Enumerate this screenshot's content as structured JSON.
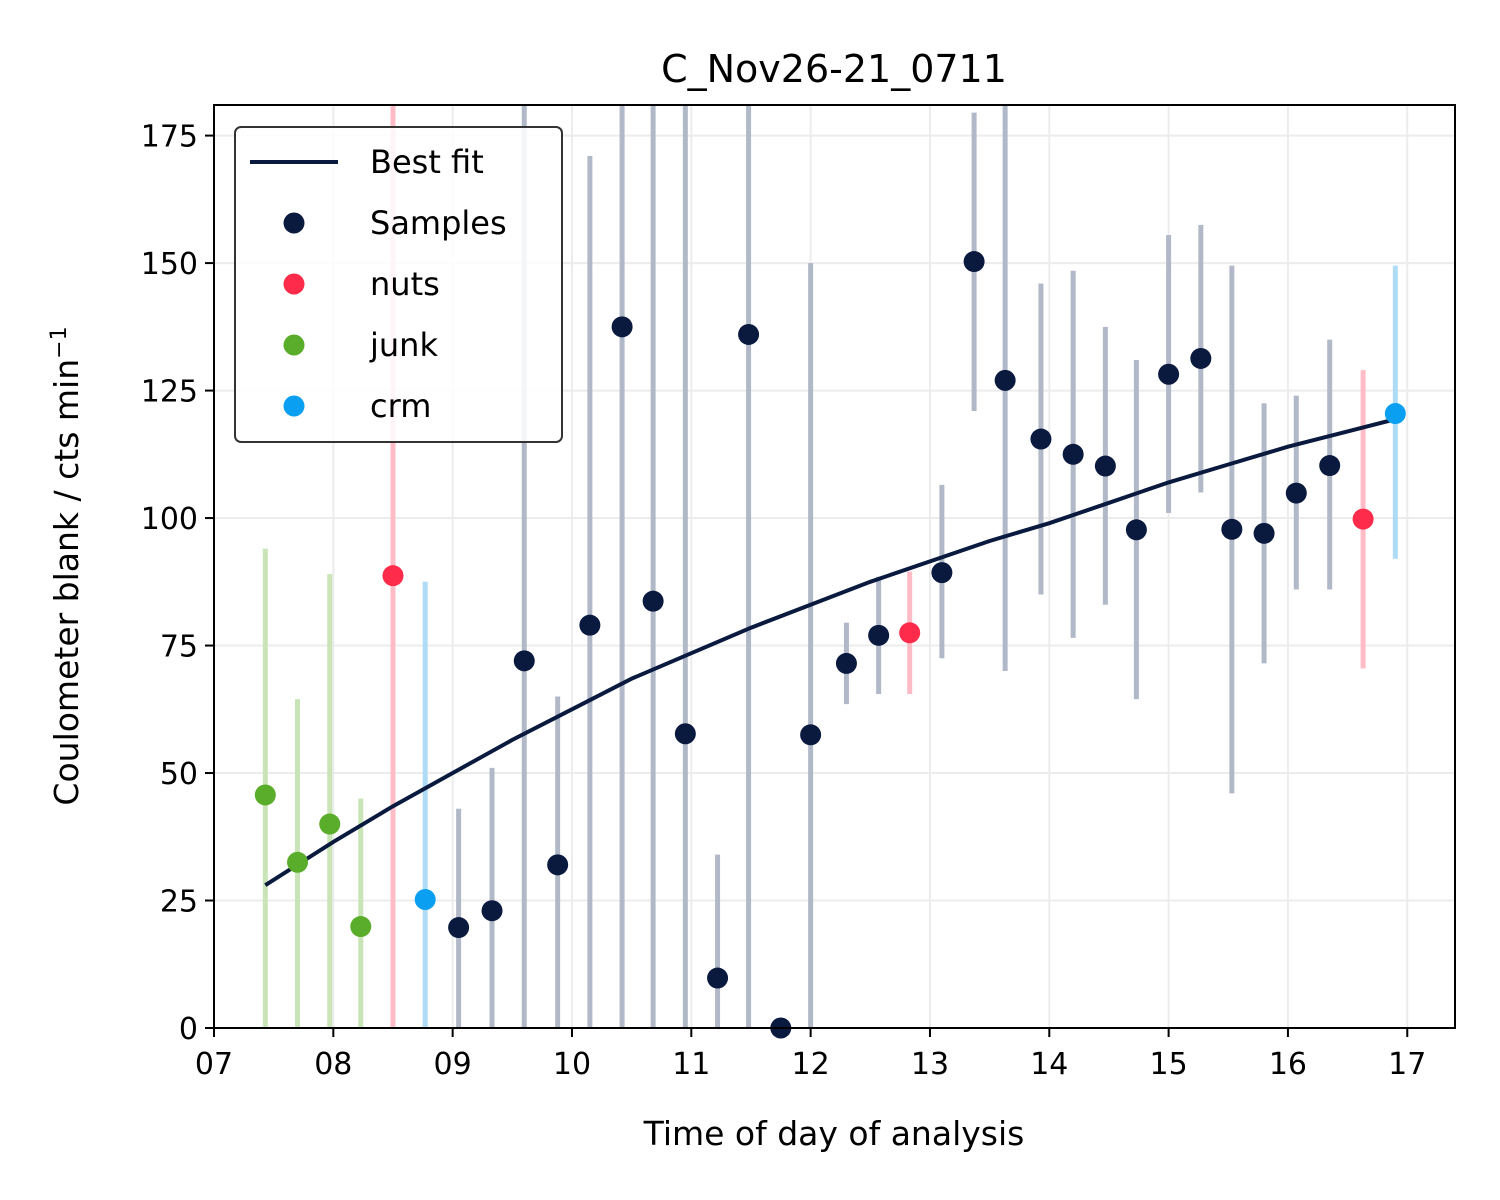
{
  "chart_data": {
    "type": "scatter",
    "title": "C_Nov26-21_0711",
    "xlabel": "Time of day of analysis",
    "ylabel": "Coulometer blank / cts min",
    "ylabel_superscript": "−1",
    "xlim": [
      7.0,
      17.4
    ],
    "ylim": [
      0,
      181
    ],
    "x_ticks": [
      7,
      8,
      9,
      10,
      11,
      12,
      13,
      14,
      15,
      16,
      17
    ],
    "x_tick_labels": [
      "07",
      "08",
      "09",
      "10",
      "11",
      "12",
      "13",
      "14",
      "15",
      "16",
      "17"
    ],
    "y_ticks": [
      0,
      25,
      50,
      75,
      100,
      125,
      150,
      175
    ],
    "y_tick_labels": [
      "0",
      "25",
      "50",
      "75",
      "100",
      "125",
      "150",
      "175"
    ],
    "grid": true,
    "legend_position": "top-left",
    "legend": [
      {
        "label": "Best fit",
        "kind": "line",
        "color": "#0a1a3f"
      },
      {
        "label": "Samples",
        "kind": "marker",
        "color": "#0a1a3f"
      },
      {
        "label": "nuts",
        "kind": "marker",
        "color": "#ff2b4a"
      },
      {
        "label": "junk",
        "kind": "marker",
        "color": "#5aad2a"
      },
      {
        "label": "crm",
        "kind": "marker",
        "color": "#0a9ff0"
      }
    ],
    "best_fit": {
      "color": "#0a1a3f",
      "x": [
        7.43,
        8.0,
        8.5,
        9.0,
        9.5,
        10.0,
        10.5,
        11.0,
        11.5,
        12.0,
        12.5,
        13.0,
        13.5,
        14.0,
        14.5,
        15.0,
        15.5,
        16.0,
        16.5,
        16.92
      ],
      "y": [
        28.0,
        36.5,
        43.5,
        50.0,
        56.5,
        62.5,
        68.5,
        73.5,
        78.5,
        83.0,
        87.5,
        91.5,
        95.5,
        99.0,
        103.0,
        107.0,
        110.5,
        114.0,
        117.0,
        119.5
      ]
    },
    "series": [
      {
        "name": "Samples",
        "color": "#0a1a3f",
        "errbar_color": "#b1b8c8",
        "points": [
          {
            "x": 9.05,
            "y": 19.7,
            "lo": 0,
            "hi": 43
          },
          {
            "x": 9.33,
            "y": 23.0,
            "lo": 0,
            "hi": 51
          },
          {
            "x": 9.6,
            "y": 72.0,
            "lo": 0,
            "hi": 181
          },
          {
            "x": 9.88,
            "y": 32.0,
            "lo": 0,
            "hi": 65
          },
          {
            "x": 10.15,
            "y": 79.0,
            "lo": 0,
            "hi": 171
          },
          {
            "x": 10.42,
            "y": 137.5,
            "lo": 0,
            "hi": 181
          },
          {
            "x": 10.68,
            "y": 83.7,
            "lo": 0,
            "hi": 181
          },
          {
            "x": 10.95,
            "y": 57.7,
            "lo": 0,
            "hi": 181
          },
          {
            "x": 11.22,
            "y": 9.8,
            "lo": 0,
            "hi": 34
          },
          {
            "x": 11.48,
            "y": 136.0,
            "lo": 0,
            "hi": 181
          },
          {
            "x": 11.75,
            "y": 0.0,
            "lo": 0,
            "hi": 0
          },
          {
            "x": 12.0,
            "y": 57.5,
            "lo": 0,
            "hi": 150
          },
          {
            "x": 12.3,
            "y": 71.5,
            "lo": 63.5,
            "hi": 79.5
          },
          {
            "x": 12.57,
            "y": 77.0,
            "lo": 65.5,
            "hi": 88.5
          },
          {
            "x": 13.1,
            "y": 89.3,
            "lo": 72.5,
            "hi": 106.5
          },
          {
            "x": 13.37,
            "y": 150.3,
            "lo": 121,
            "hi": 179.5
          },
          {
            "x": 13.63,
            "y": 127.0,
            "lo": 70,
            "hi": 181
          },
          {
            "x": 13.93,
            "y": 115.5,
            "lo": 85,
            "hi": 146
          },
          {
            "x": 14.2,
            "y": 112.5,
            "lo": 76.5,
            "hi": 148.5
          },
          {
            "x": 14.47,
            "y": 110.2,
            "lo": 83,
            "hi": 137.5
          },
          {
            "x": 14.73,
            "y": 97.7,
            "lo": 64.5,
            "hi": 131
          },
          {
            "x": 15.0,
            "y": 128.2,
            "lo": 101,
            "hi": 155.5
          },
          {
            "x": 15.27,
            "y": 131.3,
            "lo": 105,
            "hi": 157.5
          },
          {
            "x": 15.53,
            "y": 97.8,
            "lo": 46,
            "hi": 149.5
          },
          {
            "x": 15.8,
            "y": 97.0,
            "lo": 71.5,
            "hi": 122.5
          },
          {
            "x": 16.07,
            "y": 104.9,
            "lo": 86,
            "hi": 124
          },
          {
            "x": 16.35,
            "y": 110.3,
            "lo": 86,
            "hi": 135
          }
        ]
      },
      {
        "name": "nuts",
        "color": "#ff2b4a",
        "errbar_color": "#ffbcc6",
        "points": [
          {
            "x": 8.5,
            "y": 88.7,
            "lo": 0,
            "hi": 181
          },
          {
            "x": 12.83,
            "y": 77.5,
            "lo": 65.5,
            "hi": 89.5
          },
          {
            "x": 16.63,
            "y": 99.8,
            "lo": 70.5,
            "hi": 129
          }
        ]
      },
      {
        "name": "junk",
        "color": "#5aad2a",
        "errbar_color": "#c9e4b7",
        "points": [
          {
            "x": 7.43,
            "y": 45.7,
            "lo": 0,
            "hi": 94
          },
          {
            "x": 7.7,
            "y": 32.5,
            "lo": 0,
            "hi": 64.5
          },
          {
            "x": 7.97,
            "y": 40.0,
            "lo": 0,
            "hi": 89
          },
          {
            "x": 8.23,
            "y": 19.9,
            "lo": 0,
            "hi": 45
          }
        ]
      },
      {
        "name": "crm",
        "color": "#0a9ff0",
        "errbar_color": "#aedcf7",
        "points": [
          {
            "x": 8.77,
            "y": 25.2,
            "lo": 0,
            "hi": 87.5
          },
          {
            "x": 16.9,
            "y": 120.5,
            "lo": 92,
            "hi": 149.5
          }
        ]
      }
    ]
  }
}
